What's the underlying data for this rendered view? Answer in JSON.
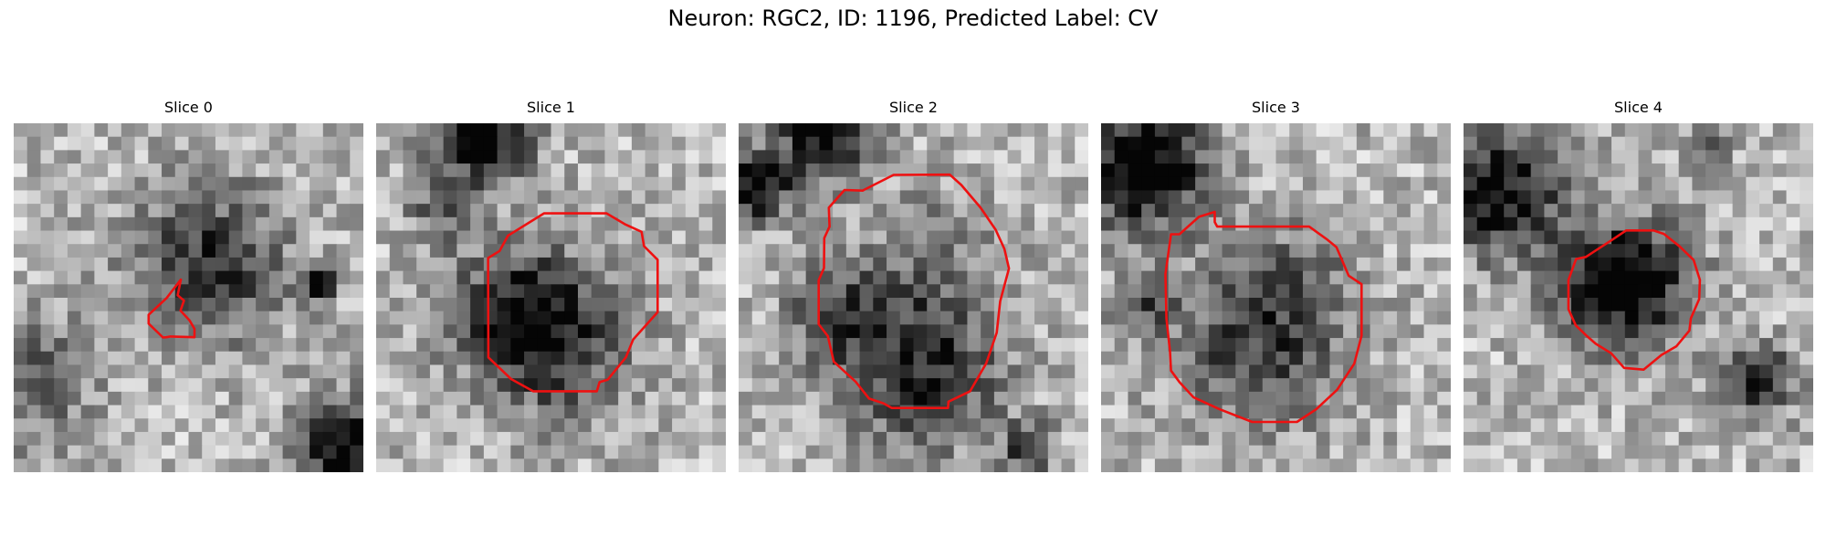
{
  "figure": {
    "title": "Neuron: RGC2, ID: 1196, Predicted Label: CV"
  },
  "contour_color": "#ee1111",
  "panels": [
    {
      "title": "Slice 0",
      "seed": 11,
      "dark_blobs": [
        [
          0.55,
          0.4,
          0.22,
          0.55
        ],
        [
          0.87,
          0.46,
          0.05,
          0.9
        ],
        [
          0.95,
          0.93,
          0.14,
          0.75
        ],
        [
          0.05,
          0.75,
          0.18,
          0.35
        ]
      ]
    },
    {
      "title": "Slice 1",
      "seed": 23,
      "dark_blobs": [
        [
          0.5,
          0.62,
          0.22,
          0.55
        ],
        [
          0.3,
          0.03,
          0.14,
          0.8
        ],
        [
          0.18,
          0.25,
          0.1,
          0.3
        ],
        [
          0.38,
          0.52,
          0.18,
          0.35
        ]
      ]
    },
    {
      "title": "Slice 2",
      "seed": 37,
      "dark_blobs": [
        [
          0.05,
          0.18,
          0.1,
          0.75
        ],
        [
          0.25,
          0.02,
          0.14,
          0.7
        ],
        [
          0.53,
          0.72,
          0.22,
          0.55
        ],
        [
          0.28,
          0.55,
          0.14,
          0.45
        ],
        [
          0.83,
          0.93,
          0.07,
          0.6
        ],
        [
          0.55,
          0.4,
          0.2,
          0.25
        ]
      ]
    },
    {
      "title": "Slice 3",
      "seed": 41,
      "dark_blobs": [
        [
          0.12,
          0.12,
          0.18,
          0.85
        ],
        [
          0.12,
          0.52,
          0.09,
          0.35
        ],
        [
          0.45,
          0.63,
          0.24,
          0.5
        ],
        [
          0.58,
          0.42,
          0.15,
          0.2
        ]
      ]
    },
    {
      "title": "Slice 4",
      "seed": 53,
      "dark_blobs": [
        [
          0.1,
          0.2,
          0.18,
          0.7
        ],
        [
          0.46,
          0.46,
          0.18,
          0.85
        ],
        [
          0.85,
          0.74,
          0.1,
          0.6
        ],
        [
          0.7,
          0.08,
          0.07,
          0.3
        ]
      ]
    }
  ],
  "contours": [
    [
      [
        0.478,
        0.448
      ],
      [
        0.437,
        0.501
      ],
      [
        0.386,
        0.549
      ],
      [
        0.386,
        0.574
      ],
      [
        0.427,
        0.614
      ],
      [
        0.437,
        0.613
      ],
      [
        0.448,
        0.611
      ],
      [
        0.517,
        0.613
      ],
      [
        0.517,
        0.589
      ],
      [
        0.503,
        0.565
      ],
      [
        0.477,
        0.537
      ],
      [
        0.487,
        0.508
      ],
      [
        0.469,
        0.493
      ]
    ],
    [
      [
        0.48,
        0.258
      ],
      [
        0.377,
        0.322
      ],
      [
        0.353,
        0.366
      ],
      [
        0.32,
        0.386
      ],
      [
        0.321,
        0.671
      ],
      [
        0.386,
        0.733
      ],
      [
        0.449,
        0.768
      ],
      [
        0.631,
        0.768
      ],
      [
        0.639,
        0.742
      ],
      [
        0.662,
        0.735
      ],
      [
        0.714,
        0.671
      ],
      [
        0.735,
        0.62
      ],
      [
        0.805,
        0.541
      ],
      [
        0.805,
        0.391
      ],
      [
        0.766,
        0.352
      ],
      [
        0.759,
        0.311
      ],
      [
        0.711,
        0.289
      ],
      [
        0.659,
        0.258
      ]
    ],
    [
      [
        0.303,
        0.191
      ],
      [
        0.258,
        0.242
      ],
      [
        0.26,
        0.296
      ],
      [
        0.245,
        0.329
      ],
      [
        0.244,
        0.415
      ],
      [
        0.229,
        0.45
      ],
      [
        0.229,
        0.576
      ],
      [
        0.255,
        0.61
      ],
      [
        0.272,
        0.683
      ],
      [
        0.335,
        0.741
      ],
      [
        0.373,
        0.789
      ],
      [
        0.415,
        0.803
      ],
      [
        0.438,
        0.816
      ],
      [
        0.599,
        0.816
      ],
      [
        0.6,
        0.798
      ],
      [
        0.662,
        0.768
      ],
      [
        0.708,
        0.688
      ],
      [
        0.738,
        0.6
      ],
      [
        0.748,
        0.51
      ],
      [
        0.773,
        0.416
      ],
      [
        0.76,
        0.36
      ],
      [
        0.735,
        0.305
      ],
      [
        0.692,
        0.242
      ],
      [
        0.637,
        0.177
      ],
      [
        0.604,
        0.147
      ],
      [
        0.443,
        0.148
      ],
      [
        0.358,
        0.191
      ],
      [
        0.355,
        0.193
      ]
    ],
    [
      [
        0.2,
        0.318
      ],
      [
        0.224,
        0.318
      ],
      [
        0.28,
        0.268
      ],
      [
        0.325,
        0.254
      ],
      [
        0.325,
        0.283
      ],
      [
        0.332,
        0.296
      ],
      [
        0.595,
        0.296
      ],
      [
        0.645,
        0.332
      ],
      [
        0.673,
        0.355
      ],
      [
        0.708,
        0.437
      ],
      [
        0.745,
        0.461
      ],
      [
        0.745,
        0.609
      ],
      [
        0.724,
        0.689
      ],
      [
        0.675,
        0.764
      ],
      [
        0.615,
        0.82
      ],
      [
        0.56,
        0.856
      ],
      [
        0.432,
        0.856
      ],
      [
        0.338,
        0.819
      ],
      [
        0.264,
        0.785
      ],
      [
        0.225,
        0.743
      ],
      [
        0.2,
        0.709
      ],
      [
        0.197,
        0.654
      ],
      [
        0.187,
        0.56
      ],
      [
        0.184,
        0.432
      ]
    ],
    [
      [
        0.428,
        0.332
      ],
      [
        0.35,
        0.383
      ],
      [
        0.322,
        0.389
      ],
      [
        0.3,
        0.449
      ],
      [
        0.3,
        0.533
      ],
      [
        0.321,
        0.579
      ],
      [
        0.354,
        0.611
      ],
      [
        0.378,
        0.632
      ],
      [
        0.422,
        0.659
      ],
      [
        0.459,
        0.701
      ],
      [
        0.515,
        0.706
      ],
      [
        0.566,
        0.664
      ],
      [
        0.609,
        0.639
      ],
      [
        0.646,
        0.594
      ],
      [
        0.65,
        0.559
      ],
      [
        0.674,
        0.504
      ],
      [
        0.676,
        0.449
      ],
      [
        0.658,
        0.392
      ],
      [
        0.618,
        0.353
      ],
      [
        0.573,
        0.317
      ],
      [
        0.543,
        0.307
      ],
      [
        0.465,
        0.307
      ]
    ]
  ]
}
